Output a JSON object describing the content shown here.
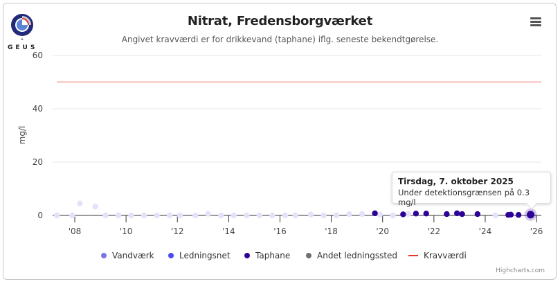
{
  "header": {
    "title": "Nitrat, Fredensborgværket",
    "subtitle": "Angivet kravværdi er for drikkevand (taphane) iflg. seneste bekendtgørelse.",
    "logo_text": "GEUS",
    "menu_icon": "hamburger-menu-icon"
  },
  "tooltip": {
    "date": "Tirsdag, 7. oktober 2025",
    "text": "Under detektionsgrænsen på 0.3 mg/l"
  },
  "legend": {
    "items": [
      {
        "label": "Vandværk",
        "color": "#7b74e6"
      },
      {
        "label": "Ledningsnet",
        "color": "#4b4bf2"
      },
      {
        "label": "Taphane",
        "color": "#2d0098"
      },
      {
        "label": "Andet ledningssted",
        "color": "#707070"
      },
      {
        "label": "Kravværdi",
        "color": "#e8332a"
      }
    ]
  },
  "credits": "Highcharts.com",
  "axis": {
    "ylabel": "mg/l",
    "yticks": [
      "0",
      "20",
      "40",
      "60"
    ],
    "xticks": [
      "'08",
      "'10",
      "'12",
      "'14",
      "'16",
      "'18",
      "'20",
      "'22",
      "'24",
      "'26"
    ]
  },
  "chart_data": {
    "type": "scatter",
    "title": "Nitrat, Fredensborgværket",
    "subtitle": "Angivet kravværdi er for drikkevand (taphane) iflg. seneste bekendtgørelse.",
    "xlabel": "",
    "ylabel": "mg/l",
    "ylim": [
      0,
      60
    ],
    "xlim": [
      2007.2,
      2026.2
    ],
    "grid": true,
    "legend_position": "bottom",
    "x_tick_labels": [
      "'08",
      "'10",
      "'12",
      "'14",
      "'16",
      "'18",
      "'20",
      "'22",
      "'24",
      "'26"
    ],
    "y_tick_labels": [
      "0",
      "20",
      "40",
      "60"
    ],
    "series": [
      {
        "name": "Vandværk",
        "color": "#7b74e6",
        "points": [
          [
            2007.3,
            0
          ],
          [
            2007.9,
            0
          ],
          [
            2008.2,
            4.5
          ],
          [
            2008.8,
            3.3
          ],
          [
            2009.2,
            0
          ],
          [
            2009.7,
            0
          ],
          [
            2010.2,
            0
          ],
          [
            2010.7,
            0
          ],
          [
            2011.2,
            0
          ],
          [
            2011.7,
            0
          ],
          [
            2012.1,
            0
          ],
          [
            2012.7,
            0
          ],
          [
            2013.2,
            0.6
          ],
          [
            2013.7,
            0
          ],
          [
            2014.2,
            0
          ],
          [
            2014.7,
            0
          ],
          [
            2015.2,
            0
          ],
          [
            2015.7,
            0
          ],
          [
            2016.2,
            0
          ],
          [
            2016.6,
            0
          ],
          [
            2017.2,
            0.3
          ],
          [
            2017.7,
            0
          ],
          [
            2018.2,
            0
          ],
          [
            2018.7,
            0.5
          ],
          [
            2019.2,
            0.5
          ],
          [
            2019.9,
            0.3
          ],
          [
            2020.4,
            0
          ],
          [
            2021.0,
            0.6
          ],
          [
            2024.4,
            0
          ]
        ]
      },
      {
        "name": "Ledningsnet",
        "color": "#4b4bf2",
        "points": []
      },
      {
        "name": "Taphane",
        "color": "#2d0098",
        "points": [
          [
            2019.7,
            0.8
          ],
          [
            2020.8,
            0.4
          ],
          [
            2021.3,
            0.7
          ],
          [
            2021.7,
            0.7
          ],
          [
            2022.5,
            0.5
          ],
          [
            2022.9,
            0.8
          ],
          [
            2023.1,
            0.5
          ],
          [
            2023.7,
            0.5
          ],
          [
            2024.9,
            0.2
          ],
          [
            2025.0,
            0.3
          ],
          [
            2025.3,
            0.2
          ],
          [
            2025.77,
            0.3
          ]
        ]
      },
      {
        "name": "Andet ledningssted",
        "color": "#707070",
        "points": []
      },
      {
        "name": "Kravværdi",
        "color": "#e8332a",
        "type": "line",
        "value": 50
      }
    ],
    "tooltip": {
      "date": "Tirsdag, 7. oktober 2025",
      "text": "Under detektionsgrænsen på 0.3 mg/l"
    }
  }
}
